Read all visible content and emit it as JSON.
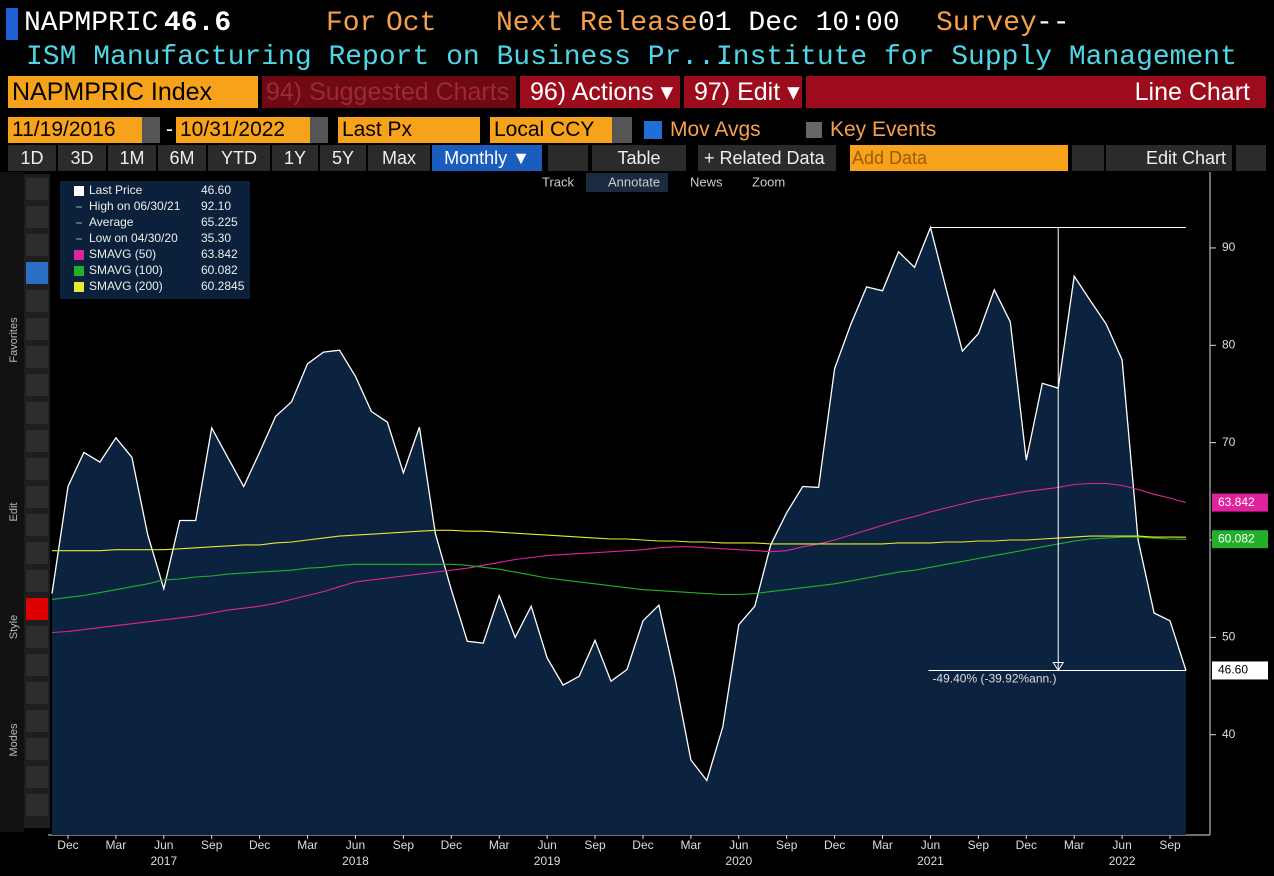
{
  "header": {
    "symbol": "NAPMPRIC",
    "last": "46.6",
    "for_label": "For",
    "period": "Oct",
    "next_release_label": "Next Release",
    "next_release": "01 Dec 10:00",
    "survey_label": "Survey",
    "survey": "--",
    "description": "ISM Manufacturing Report on Business Pr...",
    "source": "Institute for Supply Management"
  },
  "menu": {
    "security": "NAPMPRIC Index",
    "suggested": "94) Suggested Charts",
    "actions": "96) Actions ▾",
    "edit": "97) Edit ▾",
    "chart_type": "Line Chart"
  },
  "settings": {
    "start": "11/19/2016",
    "dash": "-",
    "end": "10/31/2022",
    "field": "Last Px",
    "currency": "Local CCY",
    "mov_avgs": "Mov Avgs",
    "key_events": "Key Events"
  },
  "toolbar": {
    "ranges": [
      "1D",
      "3D",
      "1M",
      "6M",
      "YTD",
      "1Y",
      "5Y",
      "Max"
    ],
    "period": "Monthly ▼",
    "table": "Table",
    "related": "+ Related Data",
    "add_data": "Add Data",
    "edit_chart": "Edit Chart"
  },
  "chart_tools": [
    "Track",
    "Annotate",
    "News",
    "Zoom"
  ],
  "sidebar": [
    "Favorites",
    "Edit",
    "Style",
    "Modes"
  ],
  "chart_data": {
    "type": "area",
    "categories": [
      null,
      "Dec",
      null,
      null,
      "Mar",
      null,
      null,
      "Jun",
      null,
      null,
      "Sep",
      null,
      null,
      "Dec",
      null,
      null,
      "Mar",
      null,
      null,
      "Jun",
      null,
      null,
      "Sep",
      null,
      null,
      "Dec",
      null,
      null,
      "Mar",
      null,
      null,
      "Jun",
      null,
      null,
      "Sep",
      null,
      null,
      "Dec",
      null,
      null,
      "Mar",
      null,
      null,
      "Jun",
      null,
      null,
      "Sep",
      null,
      null,
      "Dec",
      null,
      null,
      "Mar",
      null,
      null,
      "Jun",
      null,
      null,
      "Sep",
      null,
      null,
      "Dec",
      null,
      null,
      "Mar",
      null,
      null,
      "Jun",
      null,
      null,
      "Sep",
      null
    ],
    "x_years": [
      null,
      null,
      null,
      null,
      null,
      null,
      null,
      "2017",
      null,
      null,
      null,
      null,
      null,
      null,
      null,
      null,
      null,
      null,
      null,
      "2018",
      null,
      null,
      null,
      null,
      null,
      null,
      null,
      null,
      null,
      null,
      null,
      "2019",
      null,
      null,
      null,
      null,
      null,
      null,
      null,
      null,
      null,
      null,
      null,
      "2020",
      null,
      null,
      null,
      null,
      null,
      null,
      null,
      null,
      null,
      null,
      null,
      "2021",
      null,
      null,
      null,
      null,
      null,
      null,
      null,
      null,
      null,
      null,
      null,
      "2022",
      null,
      null,
      null,
      null
    ],
    "series": [
      {
        "name": "Last Price",
        "legend_value": "46.60",
        "color": "#ffffff",
        "fill": "#0c2340",
        "axis_tag": true,
        "values": [
          54.5,
          65.5,
          69.0,
          68.0,
          70.5,
          68.5,
          60.5,
          55.0,
          62.0,
          62.0,
          71.5,
          68.5,
          65.5,
          69.0,
          72.7,
          74.2,
          78.1,
          79.3,
          79.5,
          76.8,
          73.2,
          72.1,
          66.9,
          71.6,
          60.7,
          54.9,
          49.6,
          49.4,
          54.3,
          50.0,
          53.2,
          47.9,
          45.1,
          46.0,
          49.7,
          45.5,
          46.7,
          51.7,
          53.3,
          45.9,
          37.4,
          35.3,
          40.8,
          51.3,
          53.2,
          59.5,
          62.8,
          65.5,
          65.4,
          77.6,
          82.1,
          86.0,
          85.6,
          89.6,
          88.0,
          92.1,
          85.7,
          79.4,
          81.2,
          85.7,
          82.4,
          68.2,
          76.1,
          75.6,
          87.1,
          84.6,
          82.2,
          78.5,
          60.0,
          52.5,
          51.7,
          46.6
        ]
      },
      {
        "name": "SMAVG (50)",
        "legend_value": "63.842",
        "color": "#e0239c",
        "axis_tag": true,
        "values": [
          50.5,
          50.6,
          50.8,
          51.0,
          51.2,
          51.4,
          51.6,
          51.8,
          52.0,
          52.2,
          52.5,
          52.8,
          53.0,
          53.2,
          53.5,
          53.9,
          54.3,
          54.7,
          55.2,
          55.7,
          55.9,
          56.1,
          56.3,
          56.5,
          56.7,
          56.9,
          57.1,
          57.4,
          57.7,
          58.0,
          58.2,
          58.4,
          58.5,
          58.6,
          58.7,
          58.8,
          58.9,
          59.0,
          59.2,
          59.3,
          59.3,
          59.2,
          59.1,
          59.0,
          58.9,
          58.8,
          58.9,
          59.3,
          59.6,
          60.0,
          60.5,
          61.0,
          61.5,
          62.0,
          62.4,
          62.9,
          63.3,
          63.7,
          64.1,
          64.4,
          64.7,
          65.0,
          65.2,
          65.4,
          65.7,
          65.8,
          65.8,
          65.6,
          65.2,
          64.7,
          64.3,
          63.842
        ]
      },
      {
        "name": "SMAVG (100)",
        "legend_value": "60.082",
        "color": "#22b02a",
        "axis_tag": true,
        "values": [
          53.9,
          54.1,
          54.3,
          54.6,
          54.9,
          55.2,
          55.5,
          55.9,
          56.0,
          56.2,
          56.3,
          56.5,
          56.6,
          56.7,
          56.8,
          56.9,
          57.1,
          57.2,
          57.4,
          57.5,
          57.5,
          57.5,
          57.5,
          57.5,
          57.5,
          57.5,
          57.4,
          57.2,
          57.0,
          56.7,
          56.4,
          56.1,
          55.9,
          55.7,
          55.5,
          55.3,
          55.1,
          54.9,
          54.8,
          54.7,
          54.6,
          54.5,
          54.4,
          54.4,
          54.5,
          54.7,
          54.9,
          55.1,
          55.3,
          55.5,
          55.8,
          56.1,
          56.4,
          56.7,
          56.9,
          57.2,
          57.5,
          57.8,
          58.1,
          58.4,
          58.7,
          59.0,
          59.3,
          59.6,
          59.9,
          60.1,
          60.2,
          60.3,
          60.3,
          60.2,
          60.1,
          60.082
        ]
      },
      {
        "name": "SMAVG (200)",
        "legend_value": "60.2845",
        "color": "#e8e830",
        "axis_tag": false,
        "values": [
          58.9,
          58.9,
          58.9,
          58.9,
          59.0,
          59.0,
          59.0,
          59.0,
          59.1,
          59.2,
          59.3,
          59.4,
          59.5,
          59.5,
          59.7,
          59.8,
          60.0,
          60.2,
          60.4,
          60.5,
          60.6,
          60.7,
          60.8,
          60.9,
          61.0,
          61.0,
          60.9,
          60.9,
          60.8,
          60.7,
          60.6,
          60.5,
          60.4,
          60.3,
          60.2,
          60.1,
          60.1,
          60.0,
          59.9,
          59.9,
          59.8,
          59.8,
          59.7,
          59.7,
          59.7,
          59.6,
          59.6,
          59.6,
          59.6,
          59.6,
          59.6,
          59.6,
          59.6,
          59.7,
          59.7,
          59.7,
          59.8,
          59.8,
          59.9,
          59.9,
          60.0,
          60.0,
          60.1,
          60.2,
          60.3,
          60.4,
          60.4,
          60.4,
          60.4,
          60.3,
          60.3,
          60.2845
        ]
      }
    ],
    "stats": [
      {
        "label": "High on 06/30/21",
        "value": "92.10"
      },
      {
        "label": "Average",
        "value": "65.225"
      },
      {
        "label": "Low on 04/30/20",
        "value": "35.30"
      }
    ],
    "annotation": "-49.40% (-39.92%ann.)",
    "ylim": [
      29.7,
      97.8
    ],
    "yticks": [
      40,
      50,
      60,
      70,
      80,
      90
    ],
    "grid": false
  }
}
